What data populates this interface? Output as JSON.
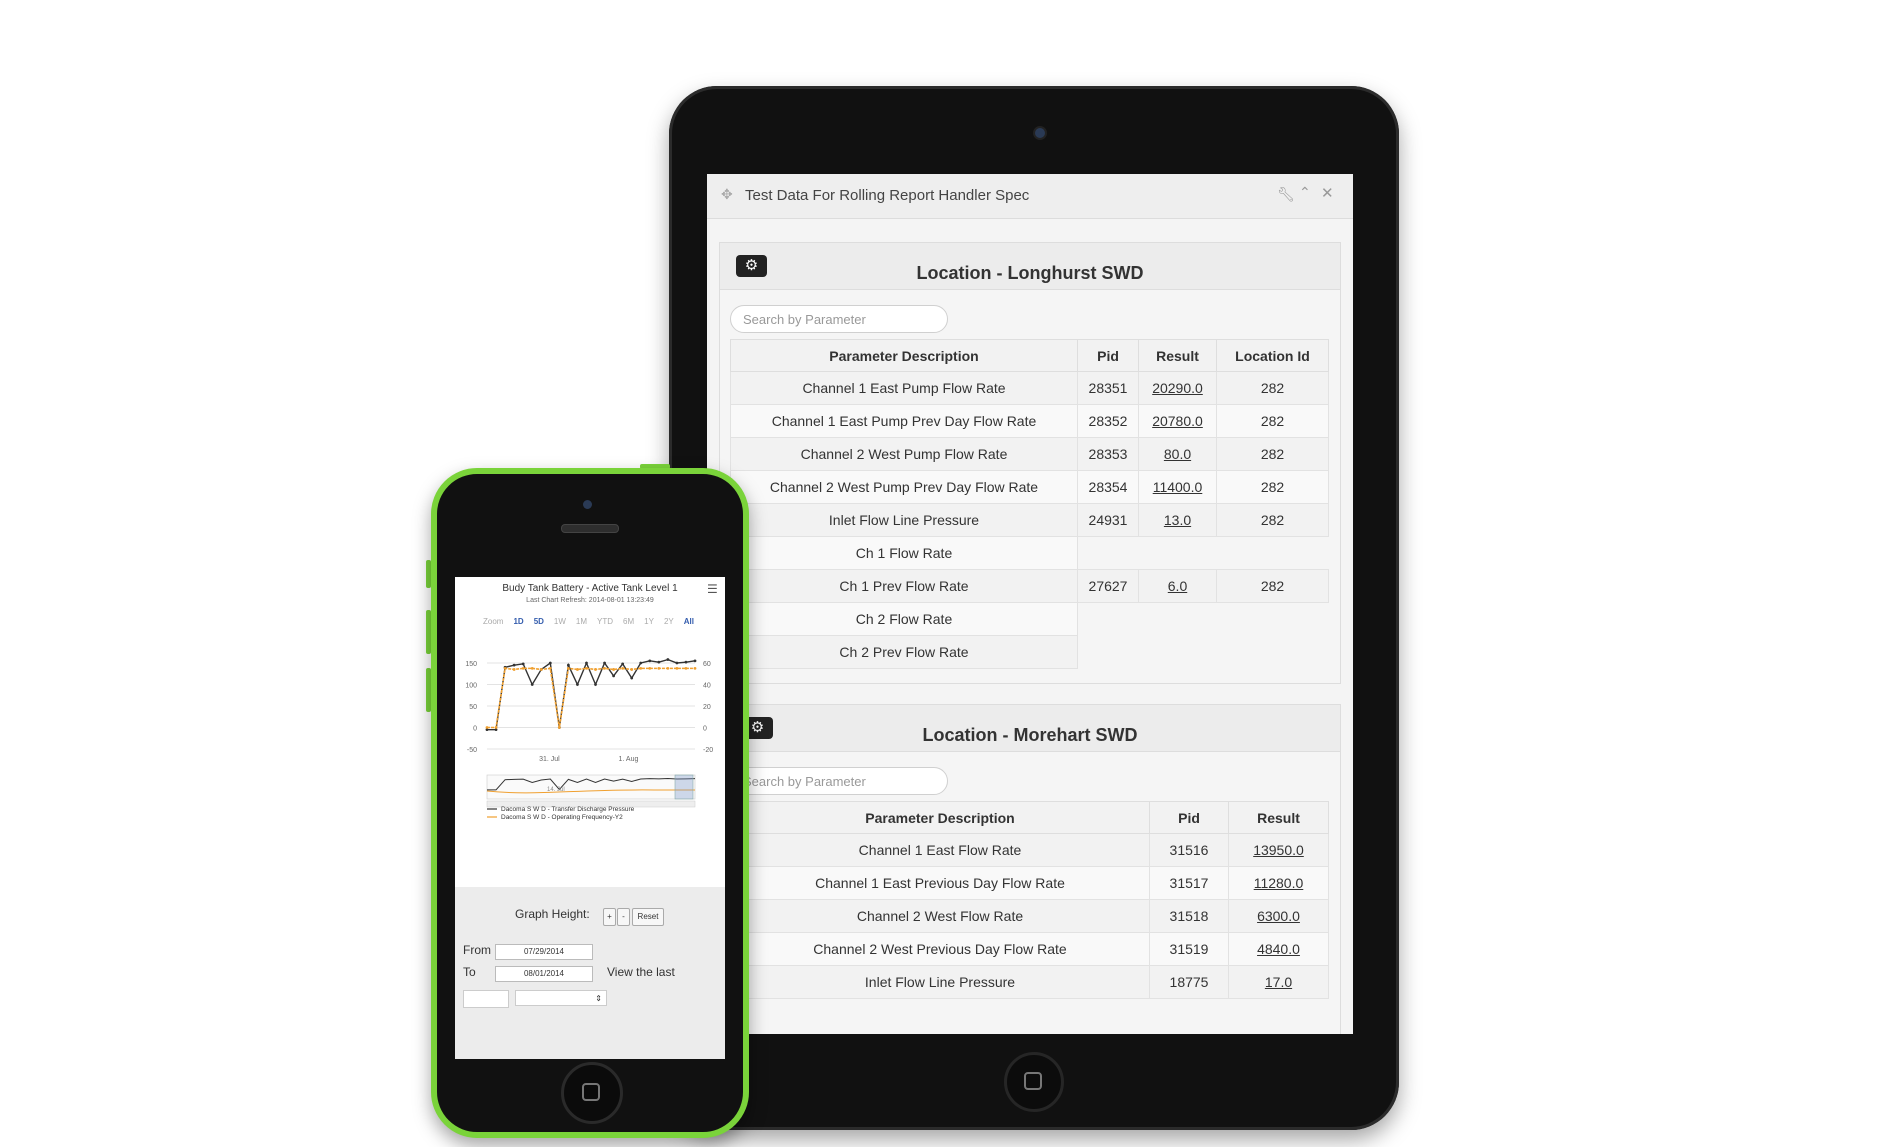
{
  "tablet": {
    "widget_title": "Test Data For Rolling Report Handler Spec",
    "panels": [
      {
        "title": "Location - Longhurst SWD",
        "search_placeholder": "Search by Parameter",
        "columns": [
          "Parameter Description",
          "Pid",
          "Result",
          "Location Id"
        ],
        "rows": [
          [
            "Channel 1 East Pump Flow Rate",
            "28351",
            "20290.0",
            "282"
          ],
          [
            "Channel 1 East Pump Prev Day Flow Rate",
            "28352",
            "20780.0",
            "282"
          ],
          [
            "Channel 2 West Pump Flow Rate",
            "28353",
            "80.0",
            "282"
          ],
          [
            "Channel 2 West Pump Prev Day Flow Rate",
            "28354",
            "11400.0",
            "282"
          ],
          [
            "Inlet Flow Line Pressure",
            "24931",
            "13.0",
            "282"
          ],
          [
            "Ch 1 Flow Rate",
            "",
            "",
            ""
          ],
          [
            "Ch 1 Prev Flow Rate",
            "27627",
            "6.0",
            "282"
          ],
          [
            "Ch 2 Flow Rate",
            "",
            "",
            ""
          ],
          [
            "Ch 2 Prev Flow Rate",
            "",
            "",
            ""
          ]
        ]
      },
      {
        "title": "Location - Morehart SWD",
        "search_placeholder": "Search by Parameter",
        "columns": [
          "Parameter Description",
          "Pid",
          "Result"
        ],
        "rows": [
          [
            "Channel 1 East Flow Rate",
            "31516",
            "13950.0"
          ],
          [
            "Channel 1 East Previous Day Flow Rate",
            "31517",
            "11280.0"
          ],
          [
            "Channel 2 West Flow Rate",
            "31518",
            "6300.0"
          ],
          [
            "Channel 2 West Previous Day Flow Rate",
            "31519",
            "4840.0"
          ],
          [
            "Inlet Flow Line Pressure",
            "18775",
            "17.0"
          ]
        ]
      }
    ]
  },
  "phone": {
    "chart_title": "Budy Tank Battery - Active Tank Level 1",
    "chart_subtitle": "Last Chart Refresh: 2014-08-01 13:23:49",
    "zoom_label": "Zoom",
    "zoom_options": [
      "1D",
      "5D",
      "1W",
      "1M",
      "YTD",
      "6M",
      "1Y",
      "2Y",
      "All"
    ],
    "graph_height_label": "Graph Height:",
    "plus_label": "+",
    "minus_label": "-",
    "reset_label": "Reset",
    "from_label": "From",
    "to_label": "To",
    "from_value": "07/29/2014",
    "to_value": "08/01/2014",
    "view_last_label": "View the last",
    "select_arrow": "⇕"
  },
  "chart_data": {
    "type": "line",
    "title": "Budy Tank Battery - Active Tank Level 1",
    "subtitle": "Last Chart Refresh: 2014-08-01 13:23:49",
    "x_tick_labels": [
      "31. Jul",
      "1. Aug"
    ],
    "navigator_label": "14. Jul",
    "y_left_ticks": [
      "150",
      "100",
      "50",
      "0",
      "-50"
    ],
    "y_right_ticks": [
      "60",
      "40",
      "20",
      "0",
      "-20"
    ],
    "ylim_left": [
      -50,
      150
    ],
    "ylim_right": [
      -20,
      60
    ],
    "grid": true,
    "legend_position": "bottom",
    "series": [
      {
        "name": "Dacoma S W D - Transfer Discharge Pressure",
        "color": "#333333",
        "axis": "left",
        "values": [
          -5,
          -5,
          140,
          145,
          148,
          100,
          135,
          150,
          0,
          145,
          100,
          150,
          100,
          150,
          120,
          148,
          115,
          150,
          155,
          152,
          158,
          150,
          152,
          155
        ]
      },
      {
        "name": "Dacoma S W D - Operating Frequency-Y2",
        "color": "#f0a030",
        "axis": "right",
        "values": [
          0,
          0,
          55,
          54,
          55,
          55,
          54,
          55,
          0,
          55,
          54,
          55,
          54,
          55,
          54,
          55,
          54,
          55,
          55,
          55,
          55,
          55,
          55,
          55
        ]
      }
    ]
  }
}
